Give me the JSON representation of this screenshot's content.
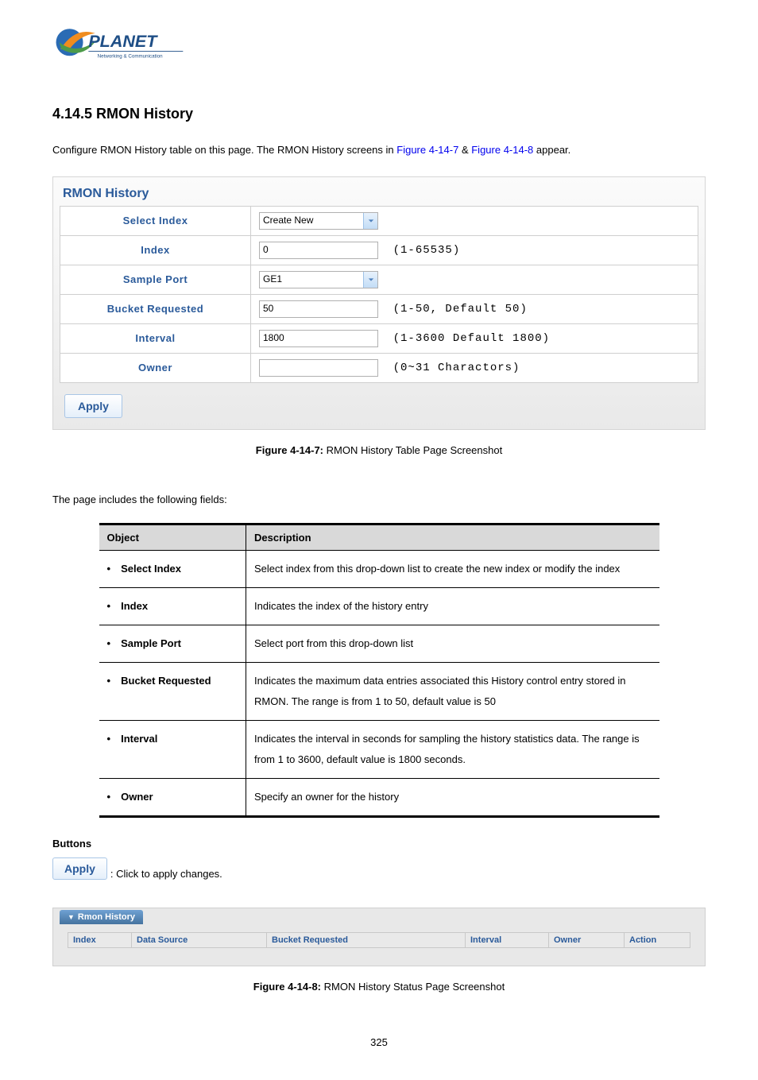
{
  "logo": {
    "brand": "PLANET",
    "tagline": "Networking & Communication",
    "swirl_color1": "#2a6bb4",
    "swirl_color2": "#f08c1e",
    "text_color": "#1e4e86"
  },
  "heading": "4.14.5 RMON History",
  "intro": {
    "prefix": "Configure RMON History table on this page. The RMON History screens in ",
    "link1": "Figure 4-14-7",
    "amp": " & ",
    "link2": "Figure 4-14-8",
    "suffix": " appear."
  },
  "panel1": {
    "title": "RMON History",
    "rows": {
      "select_index": {
        "label": "Select Index",
        "value": "Create New",
        "kind": "select"
      },
      "index": {
        "label": "Index",
        "value": "0",
        "kind": "input",
        "hint": "(1-65535)"
      },
      "sample_port": {
        "label": "Sample Port",
        "value": "GE1",
        "kind": "select"
      },
      "bucket": {
        "label": "Bucket Requested",
        "value": "50",
        "kind": "input",
        "hint": "(1-50, Default 50)"
      },
      "interval": {
        "label": "Interval",
        "value": "1800",
        "kind": "input",
        "hint": "(1-3600 Default 1800)"
      },
      "owner": {
        "label": "Owner",
        "value": "",
        "kind": "input",
        "hint": "(0~31 Charactors)"
      }
    },
    "apply": "Apply"
  },
  "caption1": {
    "label": "Figure 4-14-7:",
    "text": " RMON History Table Page Screenshot"
  },
  "fields_intro": "The page includes the following fields:",
  "desc_table": {
    "head": {
      "object": "Object",
      "description": "Description"
    },
    "rows": [
      {
        "object": "Select Index",
        "description": "Select index from this drop-down list to create the new index or modify the index"
      },
      {
        "object": "Index",
        "description": "Indicates the index of the history entry"
      },
      {
        "object": "Sample Port",
        "description": "Select port from this drop-down list"
      },
      {
        "object": "Bucket Requested",
        "description": "Indicates the maximum data entries associated this History control entry stored in RMON. The range is from 1 to 50, default value is 50"
      },
      {
        "object": "Interval",
        "description": "Indicates the interval in seconds for sampling the history statistics data. The range is from 1 to 3600, default value is 1800 seconds."
      },
      {
        "object": "Owner",
        "description": "Specify an owner for the history"
      }
    ]
  },
  "buttons_heading": "Buttons",
  "apply_inline": {
    "label": "Apply",
    "desc": ": Click to apply changes."
  },
  "panel2": {
    "tab": "Rmon History",
    "columns": [
      "Index",
      "Data Source",
      "Bucket Requested",
      "Interval",
      "Owner",
      "Action"
    ],
    "col_widths": [
      "80px",
      "170px",
      "250px",
      "105px",
      "95px",
      "auto"
    ]
  },
  "caption2": {
    "label": "Figure 4-14-8:",
    "text": " RMON History Status Page Screenshot"
  },
  "page_number": "325"
}
